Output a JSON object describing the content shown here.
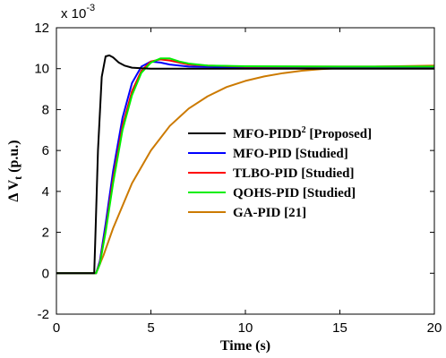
{
  "chart_data": {
    "type": "line",
    "xlabel": "Time (s)",
    "ylabel": "Δ V",
    "ylabel_subscript": "t",
    "ylabel_unit": "(p.u.)",
    "y_scale_label": "x 10",
    "y_scale_exponent": "-3",
    "xlim": [
      0,
      20
    ],
    "ylim": [
      -2,
      12
    ],
    "xticks": [
      "0",
      "5",
      "10",
      "15",
      "20"
    ],
    "yticks": [
      "-2",
      "0",
      "2",
      "4",
      "6",
      "8",
      "10",
      "12"
    ],
    "grid": false,
    "legend_position": "right-middle",
    "series": [
      {
        "name": "MFO-PIDD",
        "name_superscript": "2",
        "name_suffix": " [Proposed]",
        "color": "#000000",
        "x": [
          0,
          2.0,
          2.05,
          2.2,
          2.4,
          2.6,
          2.8,
          3.0,
          3.3,
          3.6,
          4.0,
          4.5,
          5.0,
          6.0,
          8.0,
          10.0,
          15.0,
          20.0
        ],
        "y": [
          0,
          0,
          1.5,
          6.0,
          9.6,
          10.6,
          10.65,
          10.55,
          10.3,
          10.15,
          10.05,
          10.02,
          10.0,
          10.0,
          10.0,
          10.0,
          10.0,
          10.0
        ]
      },
      {
        "name": "MFO-PID [Studied]",
        "color": "#0000ff",
        "x": [
          0,
          2.1,
          2.3,
          2.6,
          3.0,
          3.5,
          4.0,
          4.5,
          5.0,
          5.5,
          6.0,
          7.0,
          8.0,
          10.0,
          15.0,
          20.0
        ],
        "y": [
          0,
          0,
          0.6,
          2.4,
          5.0,
          7.6,
          9.3,
          10.1,
          10.35,
          10.3,
          10.2,
          10.1,
          10.08,
          10.05,
          10.05,
          10.05
        ]
      },
      {
        "name": "TLBO-PID [Studied]",
        "color": "#ff0000",
        "x": [
          0,
          2.1,
          2.3,
          2.6,
          3.0,
          3.5,
          4.0,
          4.5,
          5.0,
          5.5,
          6.0,
          6.5,
          7.0,
          8.0,
          10.0,
          15.0,
          20.0
        ],
        "y": [
          0,
          0,
          0.5,
          2.1,
          4.6,
          7.2,
          8.9,
          9.9,
          10.35,
          10.45,
          10.4,
          10.3,
          10.2,
          10.15,
          10.1,
          10.1,
          10.1
        ]
      },
      {
        "name": "QOHS-PID [Studied]",
        "color": "#00ee00",
        "x": [
          0,
          2.1,
          2.3,
          2.6,
          3.0,
          3.5,
          4.0,
          4.5,
          5.0,
          5.5,
          6.0,
          6.5,
          7.0,
          8.0,
          10.0,
          15.0,
          20.0
        ],
        "y": [
          0,
          0,
          0.45,
          2.0,
          4.4,
          7.0,
          8.7,
          9.8,
          10.3,
          10.5,
          10.5,
          10.35,
          10.25,
          10.15,
          10.12,
          10.1,
          10.1
        ]
      },
      {
        "name": "GA-PID [21]",
        "color": "#cc7a00",
        "x": [
          0,
          2.1,
          2.5,
          3.0,
          4.0,
          5.0,
          6.0,
          7.0,
          8.0,
          9.0,
          10.0,
          11.0,
          12.0,
          13.0,
          14.0,
          15.0,
          17.0,
          20.0
        ],
        "y": [
          0,
          0,
          0.9,
          2.2,
          4.4,
          6.0,
          7.2,
          8.05,
          8.65,
          9.1,
          9.4,
          9.62,
          9.78,
          9.9,
          9.98,
          10.03,
          10.1,
          10.15
        ]
      }
    ]
  }
}
